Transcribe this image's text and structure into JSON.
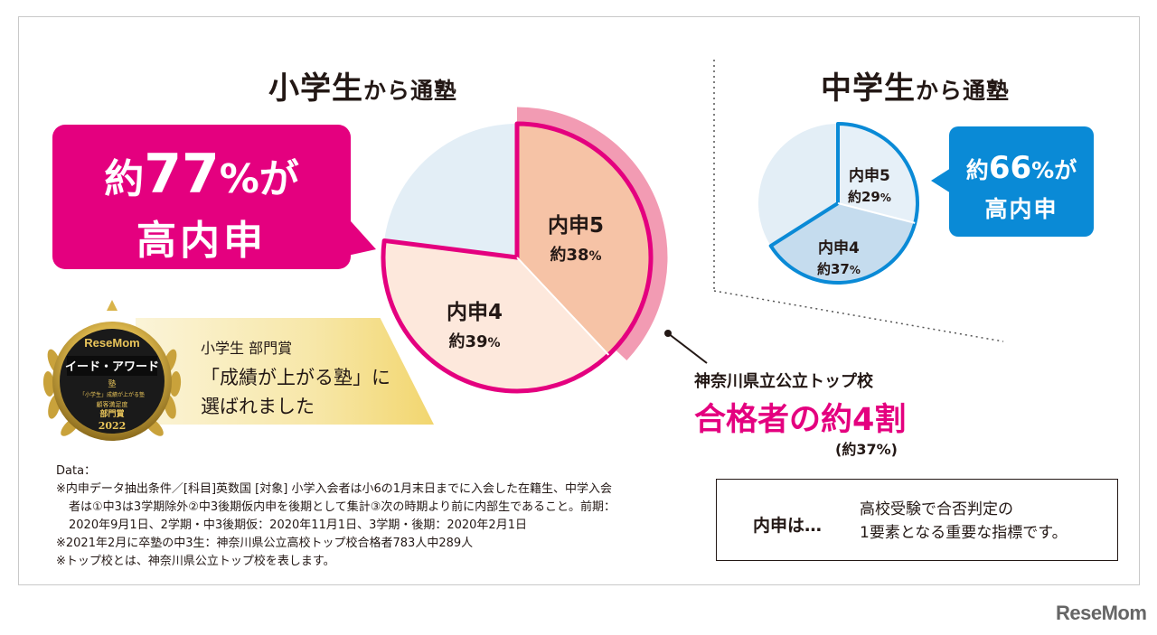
{
  "chart_data": [
    {
      "type": "pie",
      "title_main": "小学生",
      "title_suffix": "から通塾",
      "slices": [
        {
          "label": "内申5",
          "value_text": "約38",
          "unit": "%",
          "value": 38,
          "color": "#f6c3a6"
        },
        {
          "label": "内申4",
          "value_text": "約39",
          "unit": "%",
          "value": 39,
          "color": "#fde8dc"
        },
        {
          "label": "",
          "value": 23,
          "color": "#e3eef6"
        }
      ],
      "highlight_color": "#e4007f",
      "top_school_share": 37,
      "callout": {
        "prefix": "約",
        "number": "77",
        "unit": "%が",
        "line2": "高内申"
      }
    },
    {
      "type": "pie",
      "title_main": "中学生",
      "title_suffix": "から通塾",
      "slices": [
        {
          "label": "内申5",
          "value_text": "約29",
          "unit": "%",
          "value": 29,
          "color": "#e6f0f8"
        },
        {
          "label": "内申4",
          "value_text": "約37",
          "unit": "%",
          "value": 37,
          "color": "#c5dcee"
        },
        {
          "label": "",
          "value": 34,
          "color": "#e3eef6"
        }
      ],
      "highlight_color": "#0a8ad6",
      "callout": {
        "prefix": "約",
        "number": "66",
        "unit": "%が",
        "line2": "高内申"
      }
    }
  ],
  "top_school": {
    "line1": "神奈川県立公立トップ校",
    "line2": "合格者の約4割",
    "line3": "(約37%)"
  },
  "award": {
    "badge_brand": "ReseMom",
    "badge_title": "イード・アワード",
    "badge_sub1": "塾",
    "badge_sub2": "「小学生」成績が上がる塾",
    "badge_sub3": "顧客満足度",
    "badge_sub4": "部門賞",
    "badge_year": "2022",
    "text1": "小学生 部門賞",
    "text2": "「成績が上がる塾」に",
    "text3": "選ばれました"
  },
  "notes": [
    "Data：",
    "※内申データ抽出条件／[科目]英数国 [対象] 小学入会者は小6の1月末日までに入会した在籍生、中学入会",
    "者は①中3は3学期除外②中3後期仮内申を後期として集計③次の時期より前に内部生であること。前期：",
    "2020年9月1日、2学期・中3後期仮：2020年11月1日、3学期・後期：2020年2月1日",
    "※2021年2月に卒塾の中3生：神奈川県公立高校トップ校合格者783人中289人",
    "※トップ校とは、神奈川県公立トップ校を表します。"
  ],
  "definition": {
    "key": "内申は…",
    "line1": "高校受験で合否判定の",
    "line2": "1要素となる重要な指標です。"
  },
  "logo": "ReseMom"
}
